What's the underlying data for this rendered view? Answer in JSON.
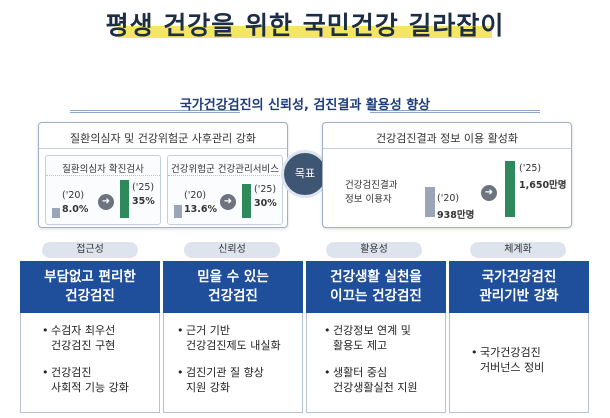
{
  "title": "평생 건강을 위한 국민건강 길라잡이",
  "subtitle": "국가건강검진의 신뢰성, 검진결과 활용성 향상",
  "goal": "목표",
  "left_panel": {
    "heading": "질환의심자 및 건강위험군 사후관리 강화",
    "box1": {
      "title": "질환의심자 확진검사",
      "before_label": "('20)",
      "before_value": "8.0%",
      "after_label": "('25)",
      "after_value": "35%",
      "before_num": 8.0,
      "after_num": 35
    },
    "box2": {
      "title": "건강위험군 건강관리서비스",
      "before_label": "('20)",
      "before_value": "13.6%",
      "after_label": "('25)",
      "after_value": "30%",
      "before_num": 13.6,
      "after_num": 30
    }
  },
  "right_panel": {
    "heading": "건강검진결과 정보 이용 활성화",
    "metric_line1": "건강검진결과",
    "metric_line2": "정보 이용자",
    "before_label": "('20)",
    "before_value": "938만명",
    "after_label": "('25)",
    "after_value": "1,650만명",
    "before_num": 938,
    "after_num": 1650
  },
  "columns": [
    {
      "tag": "접근성",
      "head1": "부담없고 편리한",
      "head2": "건강검진",
      "bullets": [
        [
          "수검자 최우선",
          "건강검진 구현"
        ],
        [
          "건강검진",
          "사회적 기능 강화"
        ]
      ]
    },
    {
      "tag": "신뢰성",
      "head1": "믿을 수 있는",
      "head2": "건강검진",
      "bullets": [
        [
          "근거 기반",
          "건강검진제도 내실화"
        ],
        [
          "검진기관 질 향상",
          "지원 강화"
        ]
      ]
    },
    {
      "tag": "활용성",
      "head1": "건강생활 실천을",
      "head2": "이끄는 건강검진",
      "bullets": [
        [
          "건강정보 연계 및",
          "활용도 제고"
        ],
        [
          "생활터 중심",
          "건강생활실천 지원"
        ]
      ]
    },
    {
      "tag": "체계화",
      "head1": "국가건강검진",
      "head2": "관리기반 강화",
      "bullets": [
        [
          "국가건강검진",
          "거버넌스 정비"
        ]
      ]
    }
  ],
  "colors": {
    "primary": "#1f4e9a",
    "navy": "#1d2d44",
    "accent_green": "#2e8a5a",
    "highlight": "#f2e04a",
    "goal_circle": "#3e5574"
  }
}
